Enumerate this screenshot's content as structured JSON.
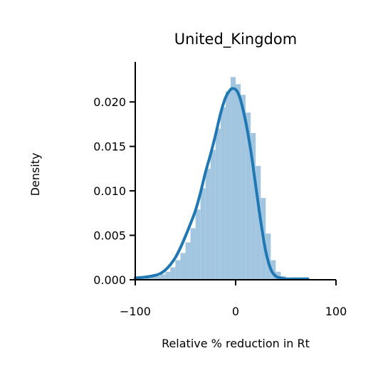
{
  "chart_data": {
    "type": "histogram+kde",
    "title": "United_Kingdom",
    "xlabel": "Relative % reduction in Rt",
    "ylabel": "Density",
    "xlim": [
      -100,
      100
    ],
    "ylim": [
      0,
      0.0245
    ],
    "xticks": [
      -100,
      0,
      100
    ],
    "xtick_labels": [
      "−100",
      "0",
      "100"
    ],
    "yticks": [
      0.0,
      0.005,
      0.01,
      0.015,
      0.02
    ],
    "ytick_labels": [
      "0.000",
      "0.005",
      "0.010",
      "0.015",
      "0.020"
    ],
    "grid": false,
    "legend": "none",
    "colors": {
      "hist": "#a3c6e0",
      "kde": "#1f77b4",
      "axis": "#000000"
    },
    "histogram": {
      "bin_edges": [
        -100,
        -95,
        -90,
        -85,
        -80,
        -75,
        -70,
        -65,
        -60,
        -55,
        -50,
        -45,
        -40,
        -35,
        -30,
        -25,
        -20,
        -15,
        -10,
        -5,
        0,
        5,
        10,
        15,
        20,
        25,
        30,
        35,
        40,
        45,
        50,
        55,
        60,
        65,
        70
      ],
      "density": [
        0.0001,
        0.0001,
        0.0002,
        0.0003,
        0.0004,
        0.0006,
        0.0009,
        0.0014,
        0.0022,
        0.003,
        0.0042,
        0.0058,
        0.0079,
        0.0103,
        0.0125,
        0.0146,
        0.017,
        0.0194,
        0.0212,
        0.0228,
        0.022,
        0.0208,
        0.0188,
        0.0165,
        0.0128,
        0.0092,
        0.0052,
        0.0022,
        0.0009,
        0.0004,
        0.0002,
        0.0001,
        0.0001,
        0.0001
      ]
    },
    "kde": {
      "x": [
        -100,
        -90,
        -80,
        -75,
        -70,
        -65,
        -60,
        -55,
        -50,
        -45,
        -40,
        -35,
        -30,
        -25,
        -20,
        -15,
        -10,
        -5,
        -2,
        0,
        2,
        5,
        10,
        15,
        20,
        25,
        30,
        35,
        40,
        45,
        50,
        60,
        72
      ],
      "y": [
        0.0002,
        0.0003,
        0.0005,
        0.0007,
        0.0011,
        0.0017,
        0.0025,
        0.0036,
        0.0049,
        0.0063,
        0.0078,
        0.0098,
        0.0121,
        0.0141,
        0.0163,
        0.0187,
        0.0205,
        0.0214,
        0.0215,
        0.0214,
        0.0211,
        0.0202,
        0.0178,
        0.0146,
        0.0106,
        0.0066,
        0.0032,
        0.0012,
        0.0004,
        0.0002,
        0.0001,
        0.0001,
        0.0001
      ]
    }
  }
}
